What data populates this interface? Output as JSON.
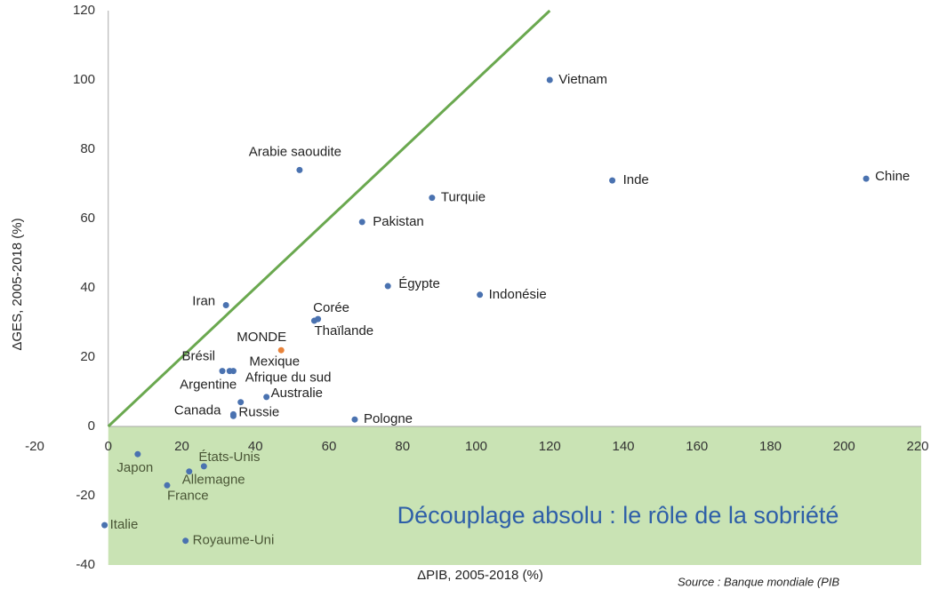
{
  "chart_data": {
    "type": "scatter",
    "x_label": "ΔPIB, 2005-2018 (%)",
    "y_label": "ΔGES, 2005-2018 (%)",
    "annotation": "Découplage absolu : le rôle de la sobriété",
    "source": "Source : Banque mondiale (PIB",
    "xlim": [
      -20,
      220
    ],
    "ylim": [
      -40,
      120
    ],
    "xticks": [
      -20,
      0,
      20,
      40,
      60,
      80,
      100,
      120,
      140,
      160,
      180,
      200,
      220
    ],
    "yticks": [
      -40,
      -20,
      0,
      20,
      40,
      60,
      80,
      100,
      120
    ],
    "grid": false,
    "reference_line": {
      "x": [
        0,
        120
      ],
      "y": [
        0,
        120
      ],
      "color": "#6aa84f"
    },
    "region_color": "#c9e3b4",
    "points": {
      "labels": [
        "Vietnam",
        "Arabie saoudite",
        "Inde",
        "Chine",
        "Turquie",
        "Pakistan",
        "Égypte",
        "Indonésie",
        "Iran",
        "Corée",
        "Thaïlande",
        "MONDE",
        "Brésil",
        "Mexique",
        "Argentine",
        "Afrique du sud",
        "Australie",
        "Canada",
        "Russie",
        "Pologne",
        "Japon",
        "États-Unis",
        "Allemagne",
        "France",
        "Italie",
        "Royaume-Uni"
      ],
      "x": [
        120,
        52,
        137,
        206,
        88,
        69,
        76,
        101,
        32,
        57,
        56,
        47,
        31,
        34,
        33,
        36,
        43,
        34,
        34,
        67,
        8,
        26,
        22,
        16,
        -1,
        21
      ],
      "y": [
        100,
        74,
        71,
        71.5,
        66,
        59,
        40.5,
        38,
        35,
        31,
        30.5,
        22,
        16,
        16,
        16,
        7,
        8.5,
        3.5,
        3,
        2,
        -8,
        -11.5,
        -13,
        -17,
        -28.5,
        -33
      ],
      "colors": [
        "#4a72b0",
        "#4a72b0",
        "#4a72b0",
        "#4a72b0",
        "#4a72b0",
        "#4a72b0",
        "#4a72b0",
        "#4a72b0",
        "#4a72b0",
        "#4a72b0",
        "#4a72b0",
        "#e8833a",
        "#4a72b0",
        "#4a72b0",
        "#4a72b0",
        "#4a72b0",
        "#4a72b0",
        "#4a72b0",
        "#4a72b0",
        "#4a72b0",
        "#4a72b0",
        "#4a72b0",
        "#4a72b0",
        "#4a72b0",
        "#4a72b0",
        "#4a72b0"
      ]
    }
  }
}
